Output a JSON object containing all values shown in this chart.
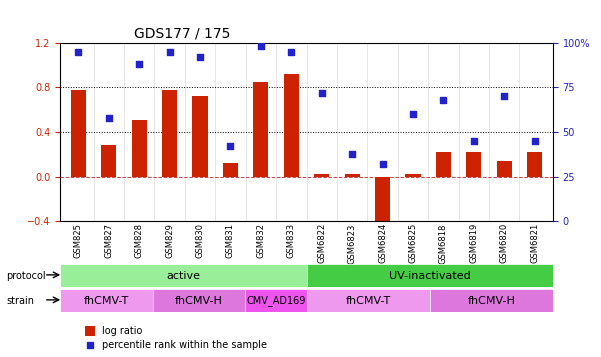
{
  "title": "GDS177 / 175",
  "samples": [
    "GSM825",
    "GSM827",
    "GSM828",
    "GSM829",
    "GSM830",
    "GSM831",
    "GSM832",
    "GSM833",
    "GSM6822",
    "GSM6823",
    "GSM6824",
    "GSM6825",
    "GSM6818",
    "GSM6819",
    "GSM6820",
    "GSM6821"
  ],
  "log_ratio": [
    0.78,
    0.28,
    0.51,
    0.78,
    0.72,
    0.12,
    0.85,
    0.92,
    0.02,
    0.02,
    -0.58,
    0.02,
    0.22,
    0.22,
    0.14,
    0.22
  ],
  "percentile": [
    95,
    58,
    88,
    95,
    92,
    42,
    98,
    95,
    72,
    38,
    32,
    60,
    68,
    45,
    70,
    45
  ],
  "ylim_left": [
    -0.4,
    1.2
  ],
  "ylim_right": [
    0,
    100
  ],
  "yticks_left": [
    -0.4,
    0.0,
    0.4,
    0.8,
    1.2
  ],
  "yticks_right": [
    0,
    25,
    50,
    75,
    100
  ],
  "bar_color": "#cc2200",
  "dot_color": "#2222cc",
  "protocol_groups": [
    {
      "label": "active",
      "start": 0,
      "end": 7,
      "color": "#99ee99"
    },
    {
      "label": "UV-inactivated",
      "start": 8,
      "end": 15,
      "color": "#44cc44"
    }
  ],
  "strain_groups": [
    {
      "label": "fhCMV-T",
      "start": 0,
      "end": 2,
      "color": "#ee99ee"
    },
    {
      "label": "fhCMV-H",
      "start": 3,
      "end": 5,
      "color": "#dd77dd"
    },
    {
      "label": "CMV_AD169",
      "start": 6,
      "end": 7,
      "color": "#ee55ee"
    },
    {
      "label": "fhCMV-T",
      "start": 8,
      "end": 11,
      "color": "#ee99ee"
    },
    {
      "label": "fhCMV-H",
      "start": 12,
      "end": 15,
      "color": "#dd77dd"
    }
  ],
  "legend_items": [
    {
      "label": "log ratio",
      "color": "#cc2200"
    },
    {
      "label": "percentile rank within the sample",
      "color": "#2222cc"
    }
  ]
}
